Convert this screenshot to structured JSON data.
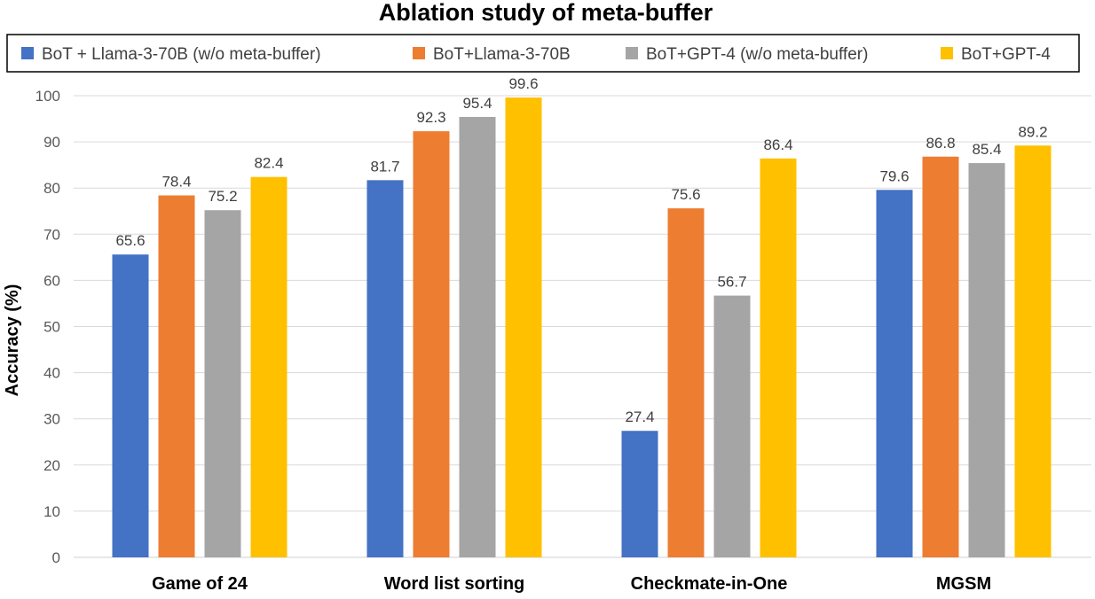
{
  "chart_data": {
    "type": "bar",
    "title": "Ablation study of meta-buffer",
    "xlabel": "",
    "ylabel": "Accuracy (%)",
    "ylim": [
      0,
      100
    ],
    "yticks": [
      0,
      10,
      20,
      30,
      40,
      50,
      60,
      70,
      80,
      90,
      100
    ],
    "grid": true,
    "legend_position": "top",
    "categories": [
      "Game of 24",
      "Word list sorting",
      "Checkmate-in-One",
      "MGSM"
    ],
    "series": [
      {
        "name": "BoT + Llama-3-70B (w/o meta-buffer)",
        "color": "#4472C4",
        "values": [
          65.6,
          81.7,
          27.4,
          79.6
        ]
      },
      {
        "name": "BoT+Llama-3-70B",
        "color": "#ED7D31",
        "values": [
          78.4,
          92.3,
          75.6,
          86.8
        ]
      },
      {
        "name": "BoT+GPT-4 (w/o meta-buffer)",
        "color": "#A5A5A5",
        "values": [
          75.2,
          95.4,
          56.7,
          85.4
        ]
      },
      {
        "name": "BoT+GPT-4",
        "color": "#FFC000",
        "values": [
          82.4,
          99.6,
          86.4,
          89.2
        ]
      }
    ]
  }
}
